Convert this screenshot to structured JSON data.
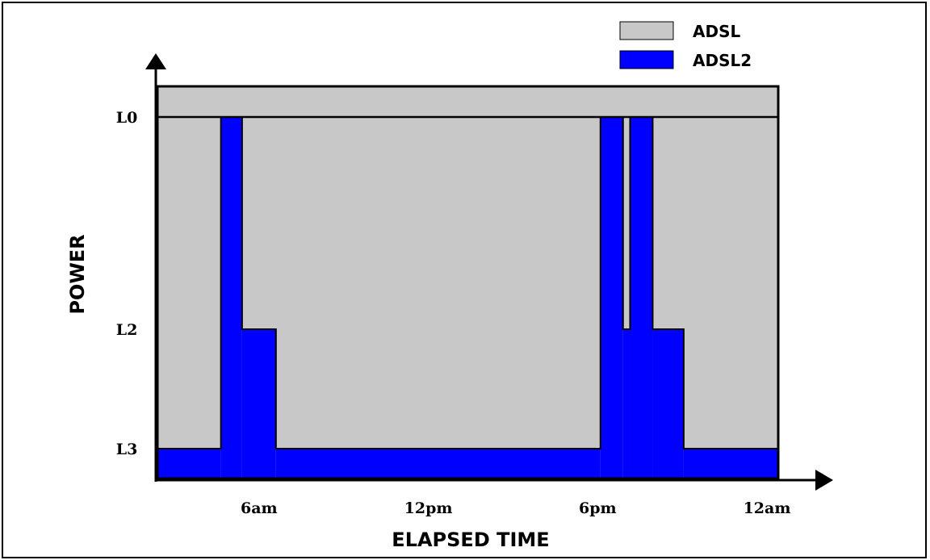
{
  "chart_data": {
    "type": "area",
    "title": "",
    "xlabel": "ELAPSED TIME",
    "ylabel": "POWER",
    "x_ticks": [
      {
        "label": "6am",
        "hour": 6
      },
      {
        "label": "12pm",
        "hour": 12
      },
      {
        "label": "6pm",
        "hour": 18
      },
      {
        "label": "12am",
        "hour": 24
      }
    ],
    "y_levels": [
      {
        "label": "L3",
        "level": 3
      },
      {
        "label": "L2",
        "level": 2
      },
      {
        "label": "L0",
        "level": 0
      }
    ],
    "xlim": [
      2.4,
      24.4
    ],
    "grid": false,
    "legend_position": "top-right",
    "series": [
      {
        "name": "ADSL",
        "color": "#c8c8c8",
        "fill_top": "above-L0",
        "steps": [
          {
            "from": 2.4,
            "to": 24.4,
            "level": 0
          }
        ]
      },
      {
        "name": "ADSL2",
        "color": "#0000ff",
        "steps": [
          {
            "from": 2.4,
            "to": 4.65,
            "level": 3
          },
          {
            "from": 4.65,
            "to": 5.4,
            "level": 0
          },
          {
            "from": 5.4,
            "to": 6.6,
            "level": 2
          },
          {
            "from": 6.6,
            "to": 18.1,
            "level": 3
          },
          {
            "from": 18.1,
            "to": 18.9,
            "level": 0
          },
          {
            "from": 18.9,
            "to": 19.15,
            "level": 2
          },
          {
            "from": 19.15,
            "to": 19.95,
            "level": 0
          },
          {
            "from": 19.95,
            "to": 21.05,
            "level": 2
          },
          {
            "from": 21.05,
            "to": 24.4,
            "level": 3
          }
        ]
      }
    ]
  }
}
